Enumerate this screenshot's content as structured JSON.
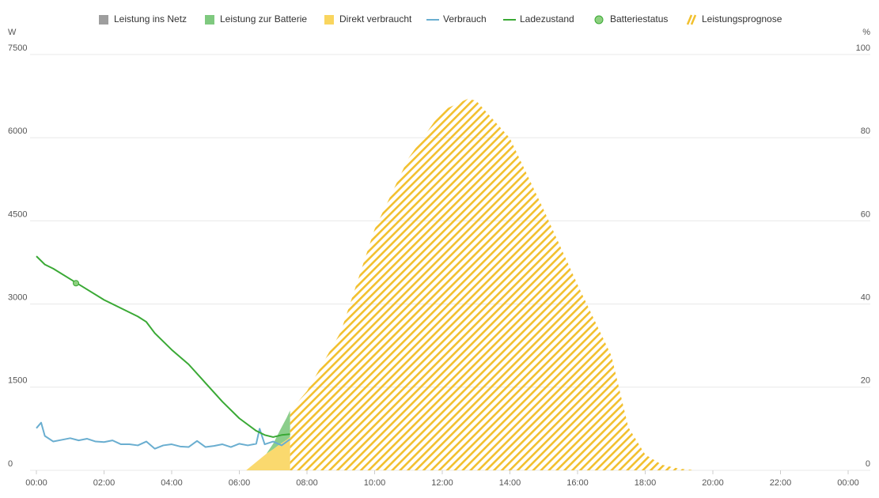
{
  "chart_data": {
    "type": "combo",
    "y_label": "W",
    "y2_label": "%",
    "xlim": [
      0,
      24
    ],
    "xticks": [
      {
        "value": 0,
        "label": "00:00"
      },
      {
        "value": 2,
        "label": "02:00"
      },
      {
        "value": 4,
        "label": "04:00"
      },
      {
        "value": 6,
        "label": "06:00"
      },
      {
        "value": 8,
        "label": "08:00"
      },
      {
        "value": 10,
        "label": "10:00"
      },
      {
        "value": 12,
        "label": "12:00"
      },
      {
        "value": 14,
        "label": "14:00"
      },
      {
        "value": 16,
        "label": "16:00"
      },
      {
        "value": 18,
        "label": "18:00"
      },
      {
        "value": 20,
        "label": "20:00"
      },
      {
        "value": 22,
        "label": "22:00"
      },
      {
        "value": 24,
        "label": "00:00"
      }
    ],
    "ylim": [
      0,
      7500
    ],
    "yticks": [
      0,
      1500,
      3000,
      4500,
      6000,
      7500
    ],
    "y2lim": [
      0,
      100
    ],
    "y2ticks": [
      0,
      20,
      40,
      60,
      80,
      100
    ],
    "grid": true,
    "stacked": true,
    "series": [
      {
        "name": "Leistung ins Netz",
        "type": "area",
        "color": "#9e9e9e",
        "x": [
          6.2,
          6.5,
          6.8,
          7.0,
          7.2,
          7.4,
          7.5
        ],
        "values": [
          0,
          0,
          0,
          0,
          0,
          0,
          0
        ]
      },
      {
        "name": "Leistung zur Batterie",
        "type": "area",
        "color": "#7fc97f",
        "x": [
          6.2,
          6.5,
          6.8,
          7.0,
          7.2,
          7.4,
          7.5
        ],
        "values": [
          0,
          0,
          0,
          100,
          250,
          400,
          480
        ]
      },
      {
        "name": "Direkt verbraucht",
        "type": "area",
        "color": "#f9d55e",
        "x": [
          6.2,
          6.5,
          6.8,
          7.0,
          7.2,
          7.4,
          7.5
        ],
        "values": [
          0,
          150,
          300,
          380,
          470,
          550,
          600
        ]
      },
      {
        "name": "Verbrauch",
        "type": "line",
        "color": "#6aaed0",
        "x": [
          0,
          0.14,
          0.25,
          0.5,
          0.75,
          1.0,
          1.25,
          1.5,
          1.75,
          2.0,
          2.25,
          2.5,
          2.75,
          3.0,
          3.25,
          3.5,
          3.75,
          4.0,
          4.25,
          4.5,
          4.75,
          5.0,
          5.25,
          5.5,
          5.75,
          6.0,
          6.25,
          6.5,
          6.6,
          6.75,
          7.0,
          7.25,
          7.5
        ],
        "values": [
          760,
          860,
          620,
          520,
          550,
          580,
          540,
          570,
          520,
          510,
          540,
          470,
          470,
          450,
          520,
          390,
          450,
          470,
          430,
          420,
          530,
          420,
          440,
          470,
          420,
          480,
          450,
          480,
          750,
          470,
          520,
          450,
          560
        ]
      },
      {
        "name": "Ladezustand",
        "type": "line",
        "color": "#3aa935",
        "axis": "y2",
        "x": [
          0,
          0.25,
          0.5,
          1,
          1.5,
          2,
          2.5,
          3,
          3.25,
          3.5,
          4,
          4.5,
          5,
          5.5,
          6,
          6.5,
          6.75,
          7,
          7.25,
          7.5
        ],
        "values": [
          51.5,
          49.5,
          48.5,
          46,
          43.5,
          41,
          39,
          37,
          35.7,
          33,
          29,
          25.5,
          21,
          16.5,
          12.5,
          9.5,
          8.5,
          8,
          8.5,
          8.7
        ]
      },
      {
        "name": "Batteriestatus",
        "type": "scatter",
        "color": "#8dd07f",
        "axis": "y2",
        "x": [
          1.17
        ],
        "values": [
          45
        ]
      },
      {
        "name": "Leistungsprognose",
        "type": "area",
        "pattern": "hatch",
        "color": "#f2c02e",
        "x": [
          7.5,
          7.75,
          8,
          9,
          10,
          11,
          12,
          12.75,
          13,
          14,
          15,
          16,
          17,
          17.5,
          18,
          18.5,
          19,
          19.5
        ],
        "values": [
          1050,
          1250,
          1430,
          2500,
          4350,
          5630,
          6490,
          6700,
          6670,
          5990,
          4700,
          3350,
          2070,
          780,
          285,
          100,
          30,
          0
        ]
      }
    ]
  }
}
